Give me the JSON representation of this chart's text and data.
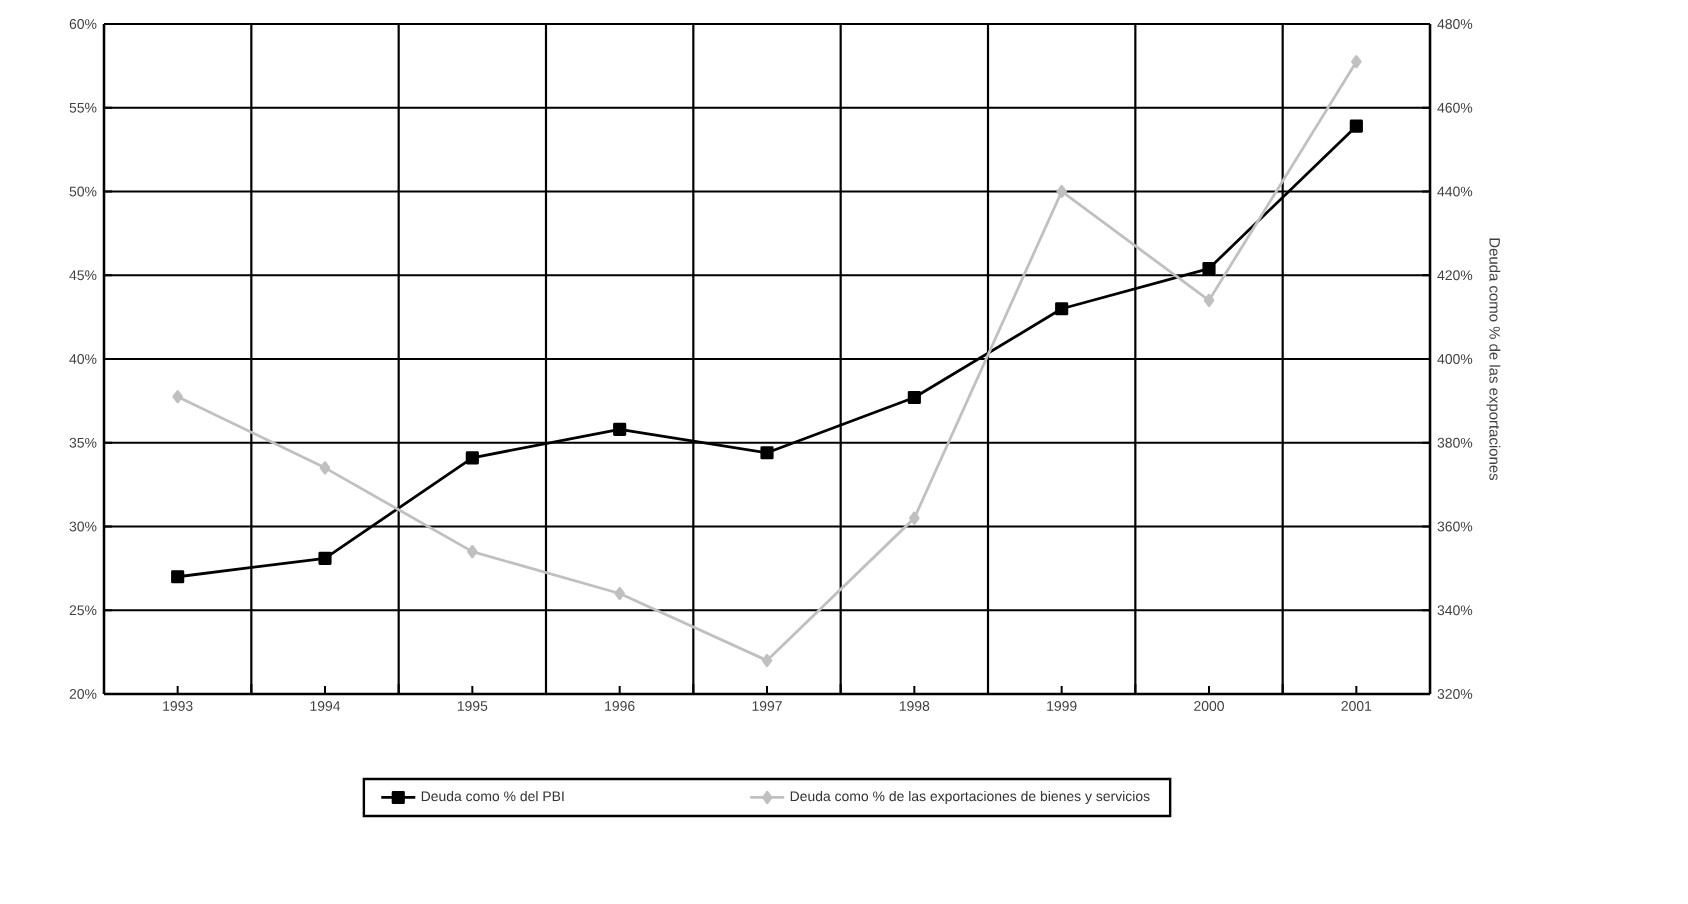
{
  "chart_data": {
    "type": "line",
    "categories": [
      "1993",
      "1994",
      "1995",
      "1996",
      "1997",
      "1998",
      "1999",
      "2000",
      "2001"
    ],
    "series": [
      {
        "name": "Deuda como % del PBI",
        "color": "#000000",
        "marker": "square",
        "values": [
          27.0,
          28.1,
          34.1,
          35.8,
          34.4,
          37.7,
          43.0,
          45.4,
          53.9
        ]
      },
      {
        "name": "Deuda como % de las exportaciones de bienes y servicios",
        "color": "#c0c0c0",
        "marker": "diamond",
        "axis": "y2",
        "values": [
          391,
          374,
          354,
          344,
          328,
          362,
          440,
          414,
          471
        ]
      }
    ],
    "ylim": [
      20,
      60
    ],
    "yticks": [
      {
        "value": 20,
        "label": "20%"
      },
      {
        "value": 25,
        "label": "25%"
      },
      {
        "value": 30,
        "label": "30%"
      },
      {
        "value": 35,
        "label": "35%"
      },
      {
        "value": 40,
        "label": "40%"
      },
      {
        "value": 45,
        "label": "45%"
      },
      {
        "value": 50,
        "label": "50%"
      },
      {
        "value": 55,
        "label": "55%"
      },
      {
        "value": 60,
        "label": "60%"
      }
    ],
    "y2lim": [
      320,
      480
    ],
    "y2ticks": [
      {
        "value": 320,
        "label": "320%"
      },
      {
        "value": 340,
        "label": "340%"
      },
      {
        "value": 360,
        "label": "360%"
      },
      {
        "value": 380,
        "label": "380%"
      },
      {
        "value": 400,
        "label": "400%"
      },
      {
        "value": 420,
        "label": "420%"
      },
      {
        "value": 440,
        "label": "440%"
      },
      {
        "value": 460,
        "label": "460%"
      },
      {
        "value": 480,
        "label": "480%"
      }
    ],
    "y2label": "Deuda como % de las exportaciones",
    "grid": true,
    "legend": "bottom",
    "line_style": "solid"
  }
}
